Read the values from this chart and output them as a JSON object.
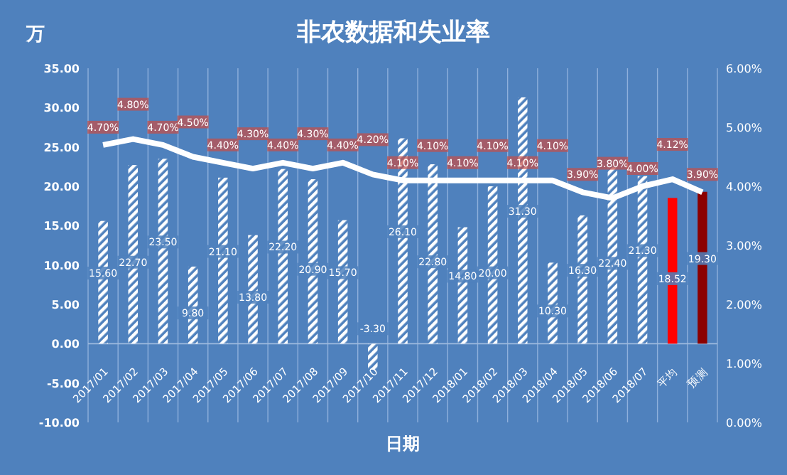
{
  "chart_data": {
    "type": "bar",
    "title": "非农数据和失业率",
    "ylabel": "万",
    "xlabel": "日期",
    "categories": [
      "2017/01",
      "2017/02",
      "2017/03",
      "2017/04",
      "2017/05",
      "2017/06",
      "2017/07",
      "2017/08",
      "2017/09",
      "2017/10",
      "2017/11",
      "2017/12",
      "2018/01",
      "2018/02",
      "2018/03",
      "2018/04",
      "2018/05",
      "2018/06",
      "2018/07",
      "平均",
      "预测"
    ],
    "series": [
      {
        "color": "#ffffff",
        "colors": [
          "#ffffff",
          "#ffffff",
          "#ffffff",
          "#ffffff",
          "#ffffff",
          "#ffffff",
          "#ffffff",
          "#ffffff",
          "#ffffff",
          "#ffffff",
          "#ffffff",
          "#ffffff",
          "#ffffff",
          "#ffffff",
          "#ffffff",
          "#ffffff",
          "#ffffff",
          "#ffffff",
          "#ffffff",
          "#ff0000",
          "#8b0000"
        ],
        "values": [
          15.6,
          22.7,
          23.5,
          9.8,
          21.1,
          13.8,
          22.2,
          20.9,
          15.7,
          -3.3,
          26.1,
          22.8,
          14.8,
          20.0,
          31.3,
          10.3,
          16.3,
          22.4,
          21.3,
          18.52,
          19.3
        ],
        "value_labels": [
          "15.60",
          "22.70",
          "23.50",
          "9.80",
          "21.10",
          "13.80",
          "22.20",
          "20.90",
          "15.70",
          "-3.30",
          "26.10",
          "22.80",
          "14.80",
          "20.00",
          "31.30",
          "10.30",
          "16.30",
          "22.40",
          "21.30",
          "18.52",
          "19.30"
        ]
      },
      {
        "type": "line",
        "axis": "y2",
        "color": "#ffffff",
        "values": [
          4.7,
          4.8,
          4.7,
          4.5,
          4.4,
          4.3,
          4.4,
          4.3,
          4.4,
          4.2,
          4.1,
          4.1,
          4.1,
          4.1,
          4.1,
          4.1,
          3.9,
          3.8,
          4.0,
          4.12,
          3.9
        ],
        "value_labels": [
          "4.70%",
          "4.80%",
          "4.70%",
          "4.50%",
          "4.40%",
          "4.30%",
          "4.40%",
          "4.30%",
          "4.40%",
          "4.20%",
          "4.10%",
          "4.10%",
          "4.10%",
          "4.10%",
          "4.10%",
          "4.10%",
          "3.90%",
          "3.80%",
          "4.00%",
          "4.12%",
          "3.90%"
        ]
      }
    ],
    "ylim": [
      -10,
      35
    ],
    "yticks": [
      {
        "value": 35,
        "label": "35.00"
      },
      {
        "value": 30,
        "label": "30.00"
      },
      {
        "value": 25,
        "label": "25.00"
      },
      {
        "value": 20,
        "label": "20.00"
      },
      {
        "value": 15,
        "label": "15.00"
      },
      {
        "value": 10,
        "label": "10.00"
      },
      {
        "value": 5,
        "label": "5.00"
      },
      {
        "value": 0,
        "label": "0.00"
      },
      {
        "value": -5,
        "label": "-5.00"
      },
      {
        "value": -10,
        "label": "-10.00"
      }
    ],
    "y2lim": [
      0,
      6
    ],
    "y2ticks": [
      {
        "value": 0,
        "label": "0.00%"
      },
      {
        "value": 1,
        "label": "1.00%"
      },
      {
        "value": 2,
        "label": "2.00%"
      },
      {
        "value": 3,
        "label": "3.00%"
      },
      {
        "value": 4,
        "label": "4.00%"
      },
      {
        "value": 5,
        "label": "5.00%"
      },
      {
        "value": 6,
        "label": "6.00%"
      }
    ],
    "grid": "x"
  }
}
